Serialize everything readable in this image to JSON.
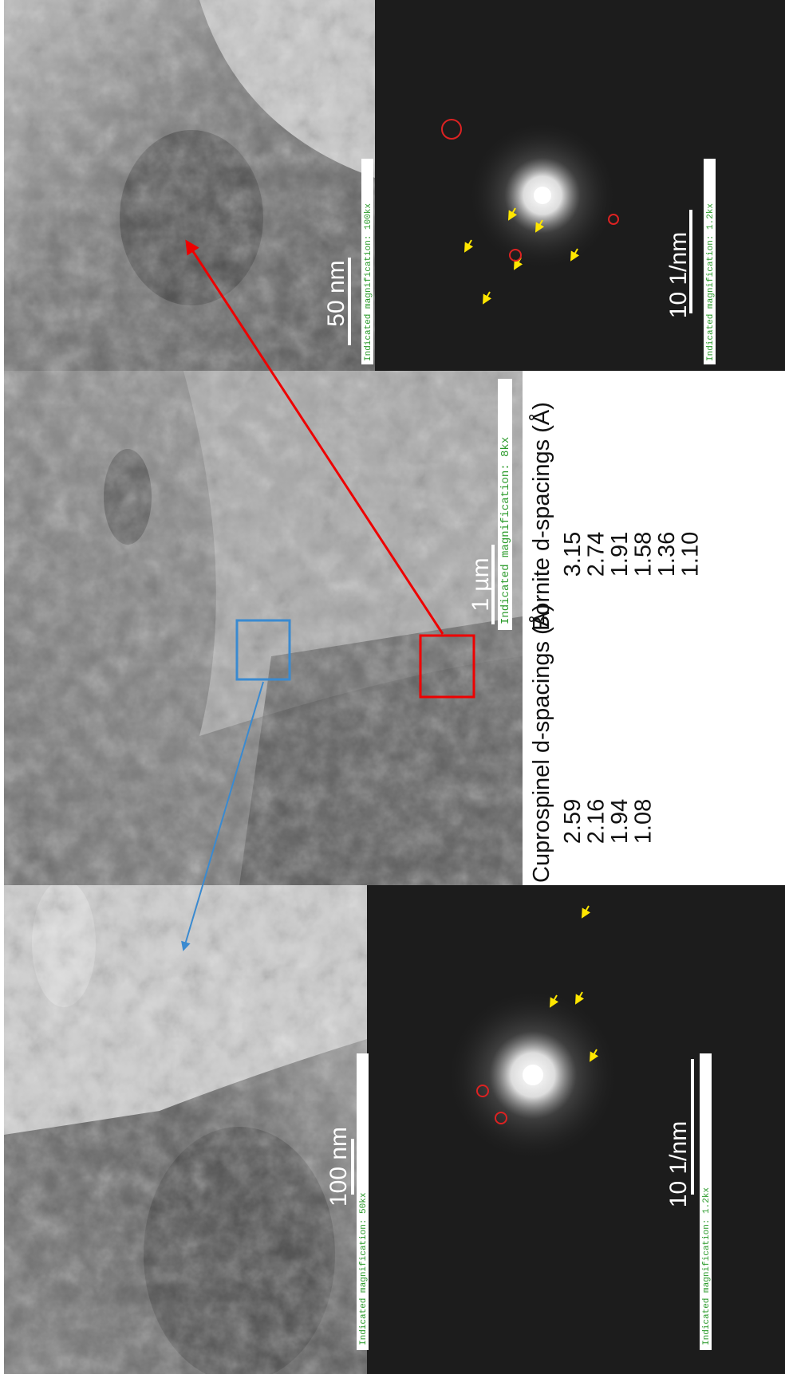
{
  "panels": [
    {
      "scale_bar": "100 nm",
      "magnification": "Indicated magnification: 50kx"
    },
    {
      "scale_bar": "10 1/nm",
      "magnification": "Indicated magnification: 1.2kx"
    },
    {
      "scale_bar": "1 µm",
      "magnification": "Indicated magnification: 8kx"
    },
    {
      "scale_bar": "50 nm",
      "magnification": "Indicated magnification: 100kx"
    },
    {
      "scale_bar": "10 1/nm",
      "magnification": "Indicated magnification: 1.2kx"
    }
  ],
  "table": {
    "columns": [
      {
        "header": "Cuprospinel d-spacings  (Å)",
        "values": [
          "2.59",
          "2.16",
          "1.94",
          "1.08"
        ]
      },
      {
        "header": "Bornite d-spacings (Å)",
        "values": [
          "3.15",
          "2.74",
          "1.91",
          "1.58",
          "1.36",
          "1.10"
        ]
      }
    ]
  }
}
